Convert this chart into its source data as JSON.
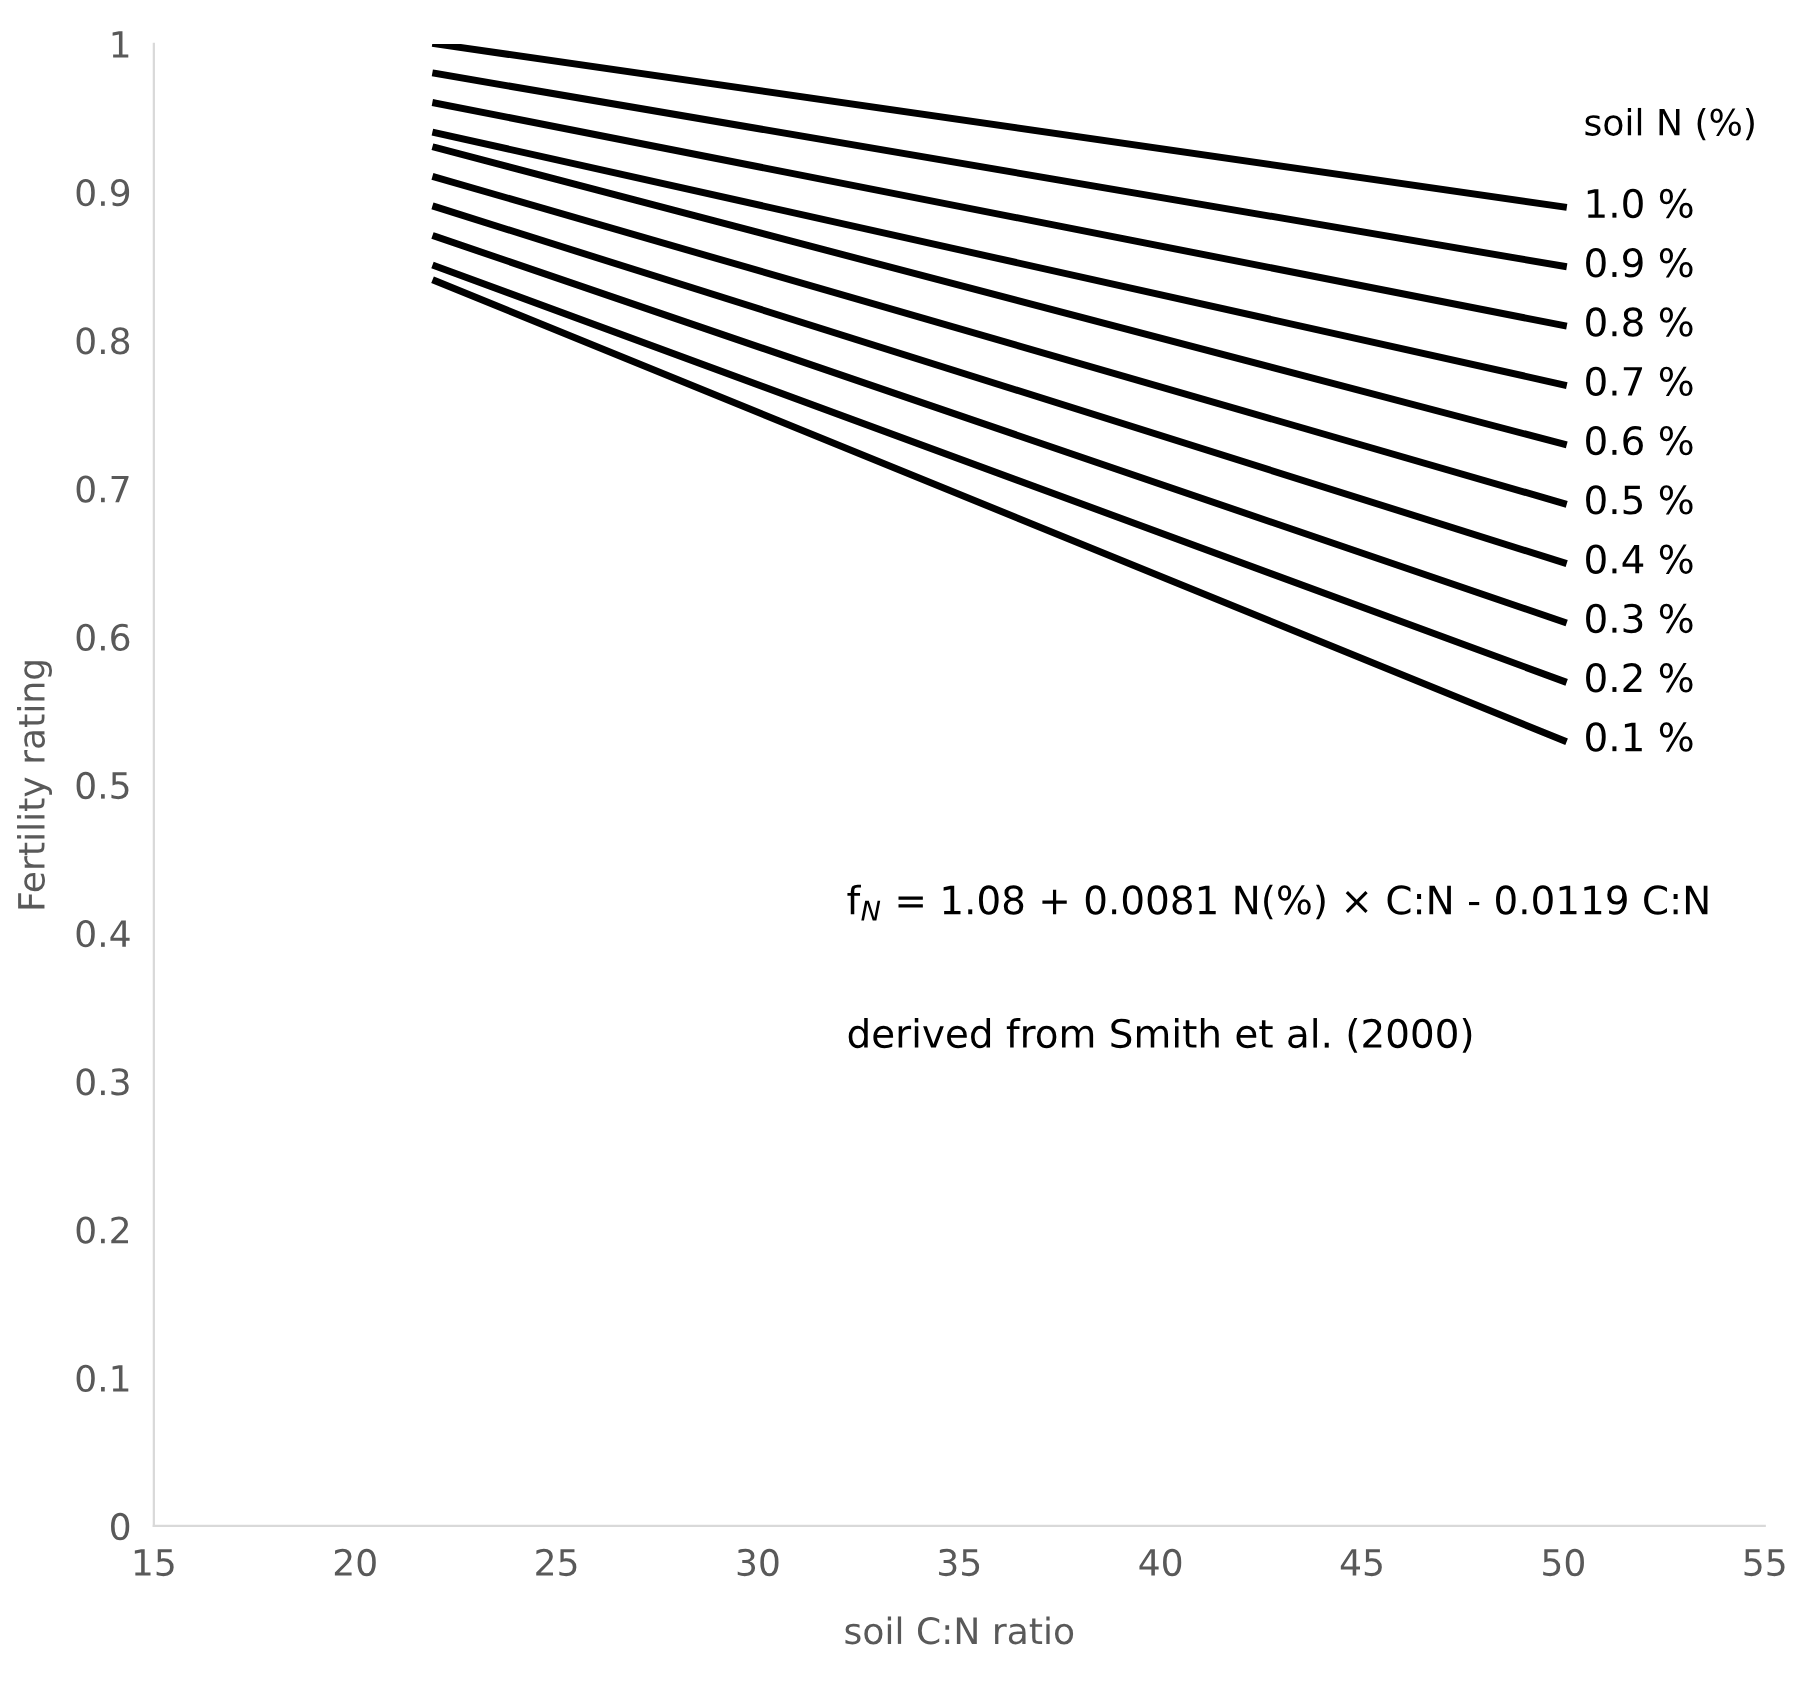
{
  "chart_data": {
    "type": "line",
    "xlabel": "soil C:N ratio",
    "ylabel": "Fertility rating",
    "legend_title": "soil N (%)",
    "xlim": [
      15,
      55
    ],
    "xticks": [
      15,
      20,
      25,
      30,
      35,
      40,
      45,
      50,
      55
    ],
    "ylim": [
      0,
      1
    ],
    "yticks": [
      0,
      0.1,
      0.2,
      0.3,
      0.4,
      0.5,
      0.6,
      0.7,
      0.8,
      0.9,
      1
    ],
    "grid": false,
    "legend": false,
    "marker": "none",
    "line_style": "solid",
    "x": [
      22,
      50
    ],
    "series": [
      {
        "name": "1.0 %",
        "color": "#000000",
        "values": [
          1.0,
          0.89
        ]
      },
      {
        "name": "0.9 %",
        "color": "#000000",
        "values": [
          0.98,
          0.85
        ]
      },
      {
        "name": "0.8 %",
        "color": "#000000",
        "values": [
          0.96,
          0.81
        ]
      },
      {
        "name": "0.7 %",
        "color": "#000000",
        "values": [
          0.94,
          0.77
        ]
      },
      {
        "name": "0.6 %",
        "color": "#000000",
        "values": [
          0.93,
          0.73
        ]
      },
      {
        "name": "0.5 %",
        "color": "#000000",
        "values": [
          0.91,
          0.69
        ]
      },
      {
        "name": "0.4 %",
        "color": "#000000",
        "values": [
          0.89,
          0.65
        ]
      },
      {
        "name": "0.3 %",
        "color": "#000000",
        "values": [
          0.87,
          0.61
        ]
      },
      {
        "name": "0.2 %",
        "color": "#000000",
        "values": [
          0.85,
          0.57
        ]
      },
      {
        "name": "0.1 %",
        "color": "#000000",
        "values": [
          0.84,
          0.53
        ]
      }
    ],
    "annotations": [
      "f$_{N}$ = 1.08 + 0.0081 N(%) × C:N - 0.0119 C:N",
      "derived from Smith et al. (2000)"
    ]
  }
}
